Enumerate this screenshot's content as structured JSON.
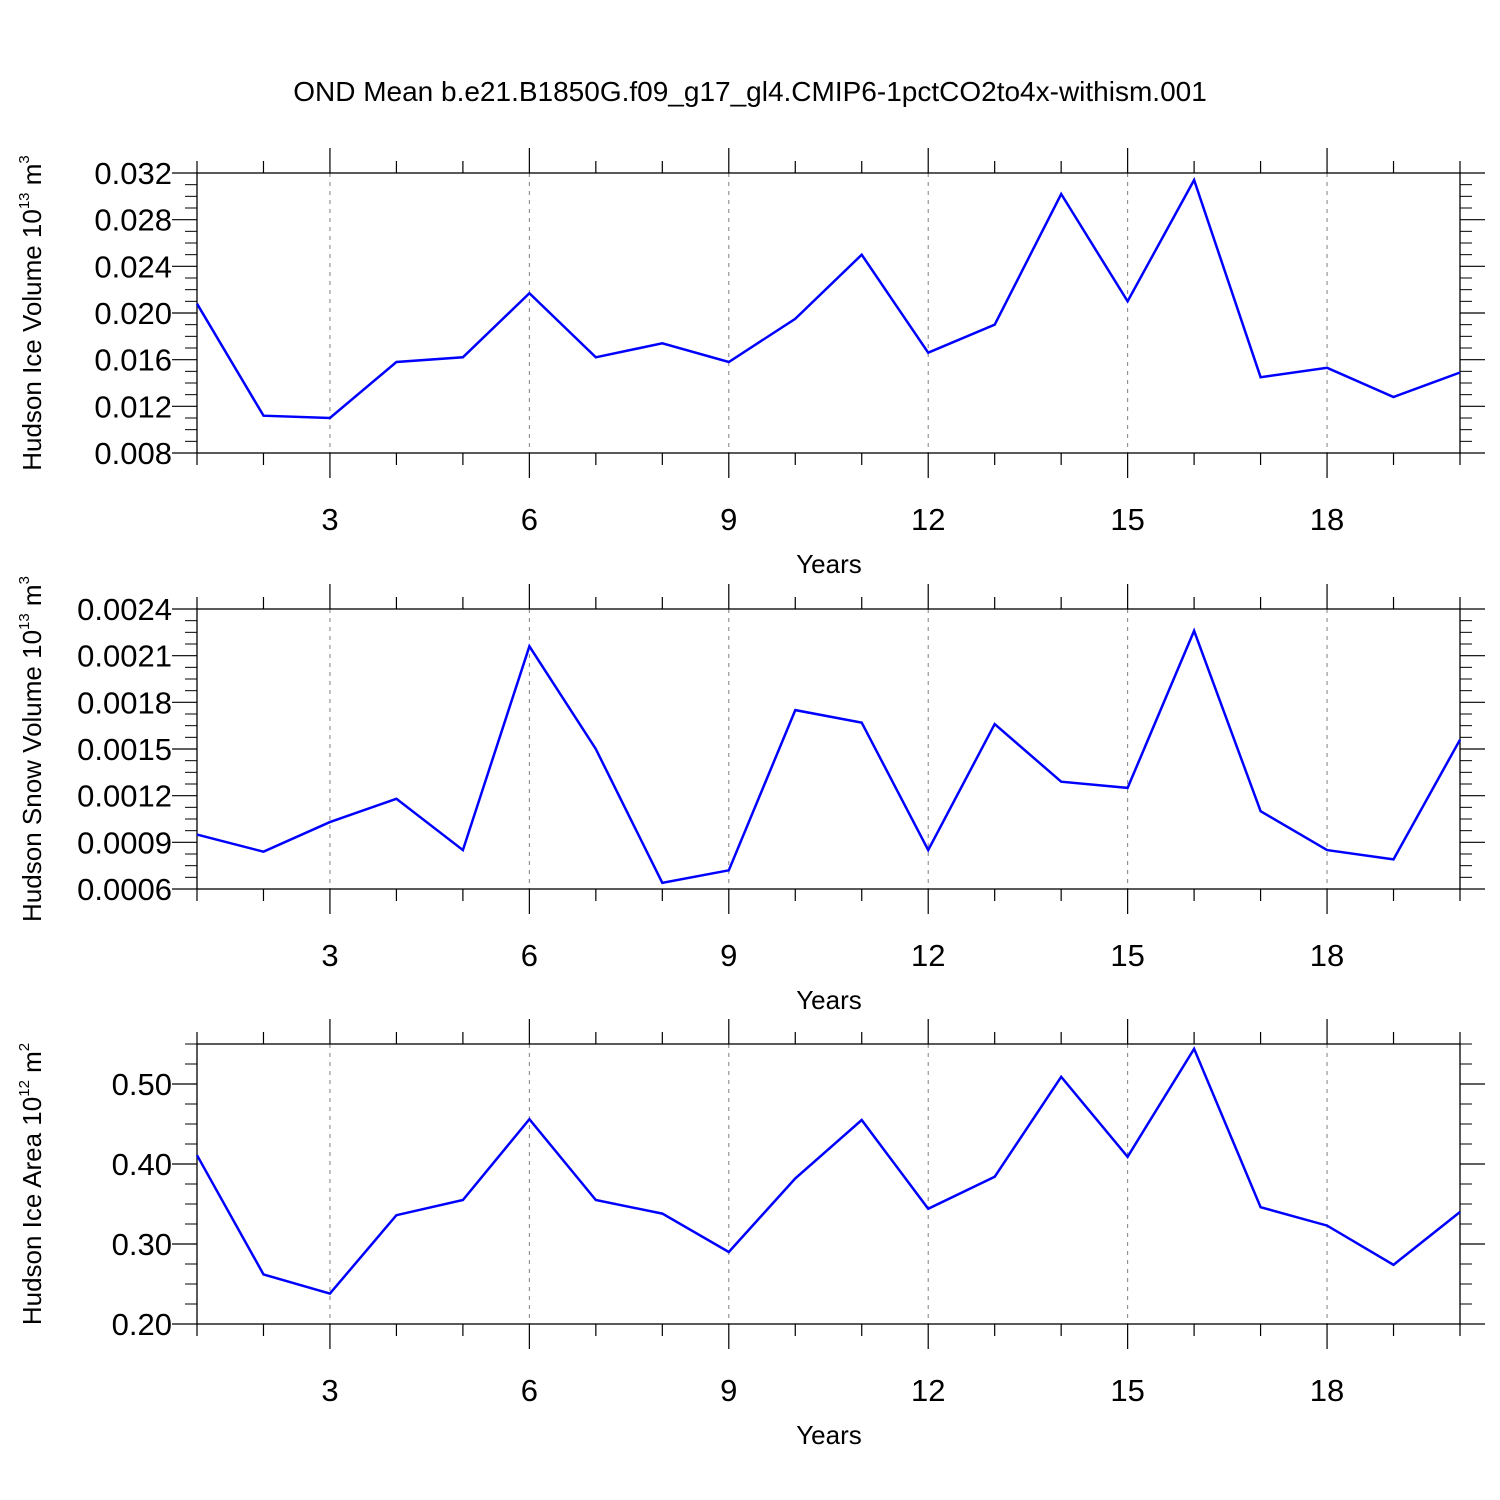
{
  "title": "OND Mean b.e21.B1850G.f09_g17_gl4.CMIP6-1pctCO2to4x-withism.001",
  "colors": {
    "series": "#0000ff",
    "axis": "#000000",
    "grid": "#808080"
  },
  "chart_data": [
    {
      "type": "line",
      "xlabel": "Years",
      "ylabel": {
        "prefix": "Hudson Ice Volume 10",
        "exponent": "13",
        "unit": " m",
        "unit_exponent": "3"
      },
      "xlim": [
        1,
        20
      ],
      "ylim": [
        0.008,
        0.032
      ],
      "xticks": [
        3,
        6,
        9,
        12,
        15,
        18
      ],
      "xtick_labels": [
        "3",
        "6",
        "9",
        "12",
        "15",
        "18"
      ],
      "yticks": [
        0.008,
        0.012,
        0.016,
        0.02,
        0.024,
        0.028,
        0.032
      ],
      "ytick_labels": [
        "0.008",
        "0.012",
        "0.016",
        "0.020",
        "0.024",
        "0.028",
        "0.032"
      ],
      "grid": "vertical dashed at major x ticks",
      "x": [
        1,
        2,
        3,
        4,
        5,
        6,
        7,
        8,
        9,
        10,
        11,
        12,
        13,
        14,
        15,
        16,
        17,
        18,
        19,
        20
      ],
      "y": [
        0.0208,
        0.0112,
        0.011,
        0.0158,
        0.0162,
        0.0217,
        0.0162,
        0.0174,
        0.0158,
        0.0195,
        0.025,
        0.0166,
        0.019,
        0.0302,
        0.021,
        0.0314,
        0.0145,
        0.0153,
        0.0128,
        0.0149
      ]
    },
    {
      "type": "line",
      "xlabel": "Years",
      "ylabel": {
        "prefix": "Hudson Snow Volume 10",
        "exponent": "13",
        "unit": " m",
        "unit_exponent": "3"
      },
      "xlim": [
        1,
        20
      ],
      "ylim": [
        0.0006,
        0.0024
      ],
      "xticks": [
        3,
        6,
        9,
        12,
        15,
        18
      ],
      "xtick_labels": [
        "3",
        "6",
        "9",
        "12",
        "15",
        "18"
      ],
      "yticks": [
        0.0006,
        0.0009,
        0.0012,
        0.0015,
        0.0018,
        0.0021,
        0.0024
      ],
      "ytick_labels": [
        "0.0006",
        "0.0009",
        "0.0012",
        "0.0015",
        "0.0018",
        "0.0021",
        "0.0024"
      ],
      "grid": "vertical dashed at major x ticks",
      "x": [
        1,
        2,
        3,
        4,
        5,
        6,
        7,
        8,
        9,
        10,
        11,
        12,
        13,
        14,
        15,
        16,
        17,
        18,
        19,
        20
      ],
      "y": [
        0.00095,
        0.00084,
        0.00103,
        0.00118,
        0.00085,
        0.00216,
        0.0015,
        0.00064,
        0.00072,
        0.00175,
        0.00167,
        0.00085,
        0.00166,
        0.00129,
        0.00125,
        0.00226,
        0.0011,
        0.00085,
        0.00079,
        0.00156
      ]
    },
    {
      "type": "line",
      "xlabel": "Years",
      "ylabel": {
        "prefix": "Hudson Ice Area 10",
        "exponent": "12",
        "unit": " m",
        "unit_exponent": "2"
      },
      "xlim": [
        1,
        20
      ],
      "ylim": [
        0.2,
        0.55
      ],
      "xticks": [
        3,
        6,
        9,
        12,
        15,
        18
      ],
      "xtick_labels": [
        "3",
        "6",
        "9",
        "12",
        "15",
        "18"
      ],
      "yticks": [
        0.2,
        0.3,
        0.4,
        0.5
      ],
      "ytick_labels": [
        "0.20",
        "0.30",
        "0.40",
        "0.50"
      ],
      "grid": "vertical dashed at major x ticks",
      "x": [
        1,
        2,
        3,
        4,
        5,
        6,
        7,
        8,
        9,
        10,
        11,
        12,
        13,
        14,
        15,
        16,
        17,
        18,
        19,
        20
      ],
      "y": [
        0.411,
        0.262,
        0.238,
        0.336,
        0.355,
        0.456,
        0.355,
        0.338,
        0.29,
        0.382,
        0.455,
        0.344,
        0.384,
        0.509,
        0.409,
        0.544,
        0.346,
        0.323,
        0.274,
        0.34
      ]
    }
  ]
}
